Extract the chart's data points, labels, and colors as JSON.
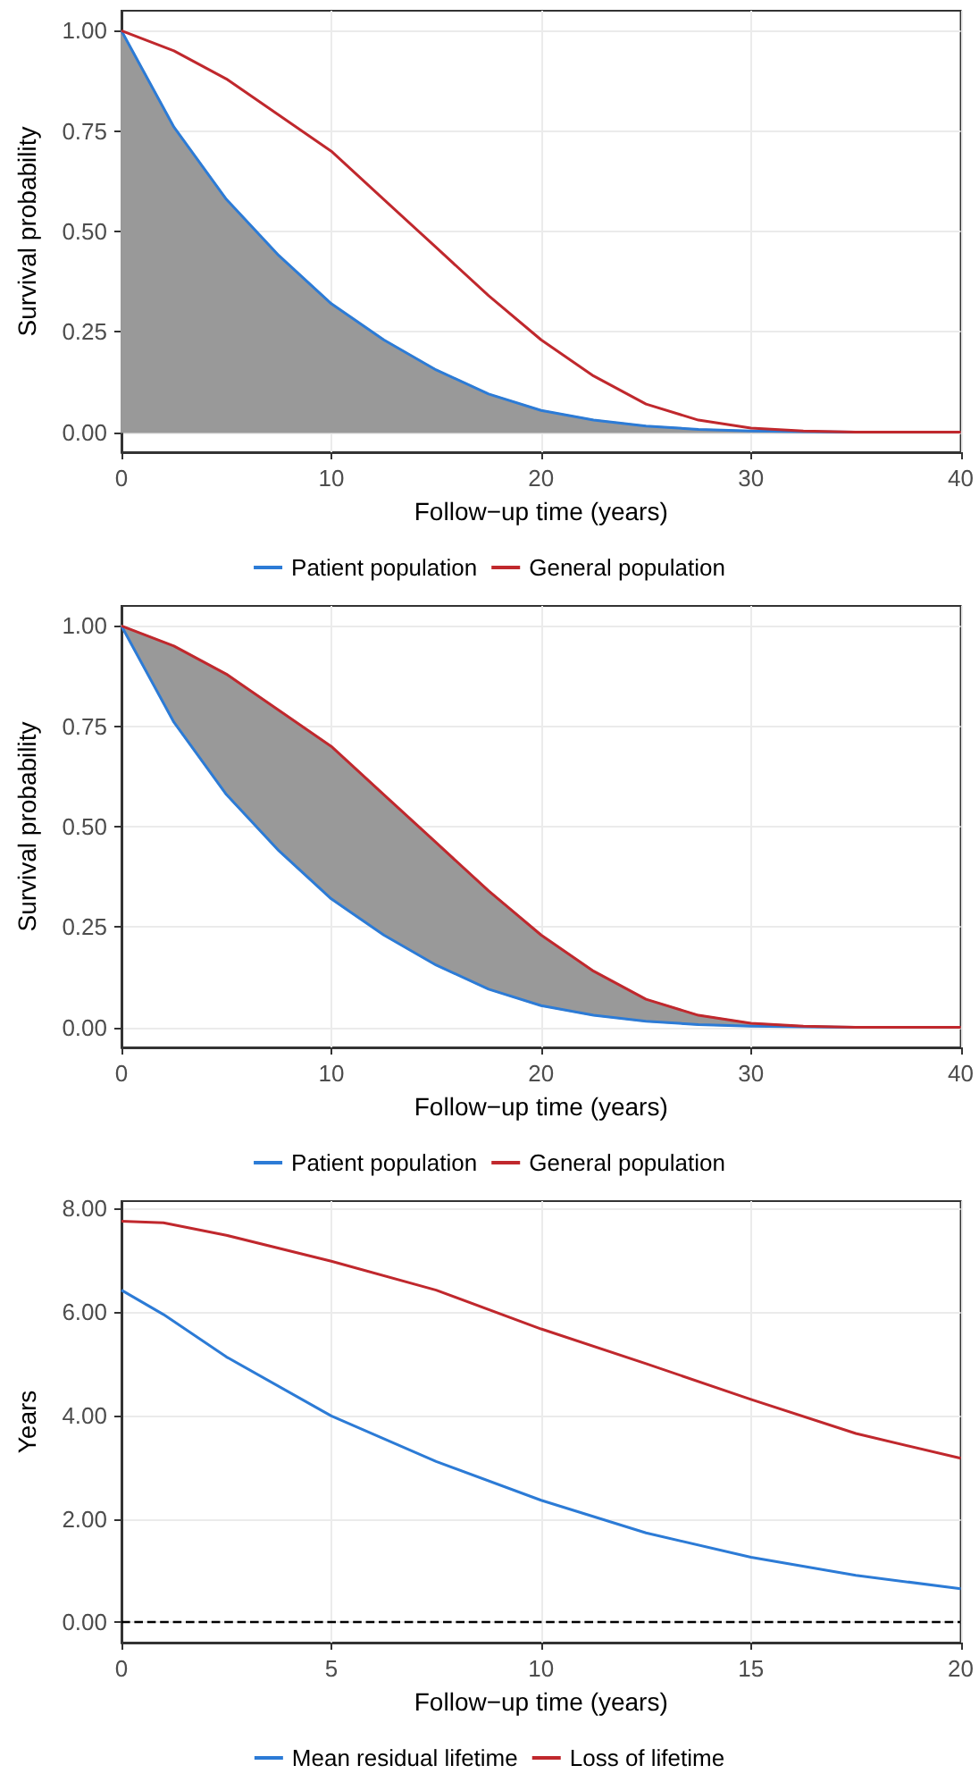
{
  "chart_data": [
    {
      "type": "line",
      "xlabel": "Follow−up time (years)",
      "ylabel": "Survival probability",
      "x": [
        0,
        2.5,
        5,
        7.5,
        10,
        12.5,
        15,
        17.5,
        20,
        22.5,
        25,
        27.5,
        30,
        32.5,
        35,
        37.5,
        40
      ],
      "series": [
        {
          "name": "Patient population",
          "color": "#2c7bd6",
          "values": [
            1,
            0.76,
            0.58,
            0.44,
            0.32,
            0.23,
            0.155,
            0.095,
            0.054,
            0.03,
            0.015,
            0.007,
            0.003,
            0.001,
            0,
            null,
            null
          ],
          "lower": [
            0,
            0,
            0,
            0,
            0,
            0,
            0,
            0,
            0,
            0,
            0,
            0,
            0,
            0,
            0,
            0,
            0
          ],
          "upper": [
            1,
            0.76,
            0.58,
            0.44,
            0.32,
            0.23,
            0.155,
            0.095,
            0.054,
            0.03,
            0.015,
            0.007,
            0.003,
            0.001,
            0,
            0,
            0
          ]
        },
        {
          "name": "General population",
          "color": "#c0282d",
          "values": [
            1,
            0.95,
            0.88,
            0.79,
            0.7,
            0.58,
            0.46,
            0.34,
            0.23,
            0.14,
            0.07,
            0.03,
            0.01,
            0.003,
            0,
            0,
            0
          ]
        }
      ],
      "xlim": [
        0,
        40
      ],
      "ylim": [
        -0.05,
        1.05
      ],
      "xticks": [
        0,
        10,
        20,
        30,
        40
      ],
      "yticks": [
        {
          "value": 0,
          "label": "0.00"
        },
        {
          "value": 0.25,
          "label": "0.25"
        },
        {
          "value": 0.5,
          "label": "0.50"
        },
        {
          "value": 0.75,
          "label": "0.75"
        },
        {
          "value": 1,
          "label": "1.00"
        }
      ],
      "grid": true,
      "legend": "bottom",
      "marker": "none"
    },
    {
      "type": "line",
      "xlabel": "Follow−up time (years)",
      "ylabel": "Survival probability",
      "x": [
        0,
        2.5,
        5,
        7.5,
        10,
        12.5,
        15,
        17.5,
        20,
        22.5,
        25,
        27.5,
        30,
        32.5,
        35,
        37.5,
        40
      ],
      "series": [
        {
          "name": "Patient population",
          "color": "#2c7bd6",
          "values": [
            1,
            0.76,
            0.58,
            0.44,
            0.32,
            0.23,
            0.155,
            0.095,
            0.054,
            0.03,
            0.015,
            0.007,
            0.003,
            0.001,
            0,
            null,
            null
          ]
        },
        {
          "name": "General population",
          "color": "#c0282d",
          "values": [
            1,
            0.95,
            0.88,
            0.79,
            0.7,
            0.58,
            0.46,
            0.34,
            0.23,
            0.14,
            0.07,
            0.03,
            0.01,
            0.003,
            0,
            0,
            0
          ],
          "lower": [
            1,
            0.76,
            0.58,
            0.44,
            0.32,
            0.23,
            0.155,
            0.095,
            0.054,
            0.03,
            0.015,
            0.007,
            0.003,
            0.001,
            0,
            0,
            0
          ],
          "upper": [
            1,
            0.95,
            0.88,
            0.79,
            0.7,
            0.58,
            0.46,
            0.34,
            0.23,
            0.14,
            0.07,
            0.03,
            0.01,
            0.003,
            0,
            0,
            0
          ]
        }
      ],
      "xlim": [
        0,
        40
      ],
      "ylim": [
        -0.05,
        1.05
      ],
      "xticks": [
        0,
        10,
        20,
        30,
        40
      ],
      "yticks": [
        {
          "value": 0,
          "label": "0.00"
        },
        {
          "value": 0.25,
          "label": "0.25"
        },
        {
          "value": 0.5,
          "label": "0.50"
        },
        {
          "value": 0.75,
          "label": "0.75"
        },
        {
          "value": 1,
          "label": "1.00"
        }
      ],
      "grid": true,
      "legend": "bottom",
      "marker": "none"
    },
    {
      "type": "line",
      "xlabel": "Follow−up time (years)",
      "ylabel": "Years",
      "x": [
        0,
        1,
        2.5,
        5,
        7.5,
        10,
        12.5,
        15,
        17.5,
        20
      ],
      "series": [
        {
          "name": "Mean residual lifetime",
          "color": "#2c7bd6",
          "values": [
            6.42,
            5.95,
            5.13,
            3.99,
            3.11,
            2.36,
            1.73,
            1.26,
            0.91,
            0.65
          ]
        },
        {
          "name": "Loss of lifetime",
          "color": "#c0282d",
          "values": [
            7.75,
            7.72,
            7.48,
            6.98,
            6.42,
            5.67,
            5.0,
            4.31,
            3.65,
            3.17
          ]
        }
      ],
      "xlim": [
        0,
        20
      ],
      "ylim": [
        -0.39,
        8.14
      ],
      "xticks": [
        0,
        5,
        10,
        15,
        20
      ],
      "yticks": [
        {
          "value": 0,
          "label": "0.00"
        },
        {
          "value": 2,
          "label": "2.00"
        },
        {
          "value": 4,
          "label": "4.00"
        },
        {
          "value": 6,
          "label": "6.00"
        },
        {
          "value": 8,
          "label": "8.00"
        }
      ],
      "ref_lines": [
        {
          "axis": "y",
          "value": 0,
          "color": "#000000",
          "line_style": "dashed"
        }
      ],
      "grid": true,
      "legend": "bottom",
      "marker": "none"
    }
  ]
}
